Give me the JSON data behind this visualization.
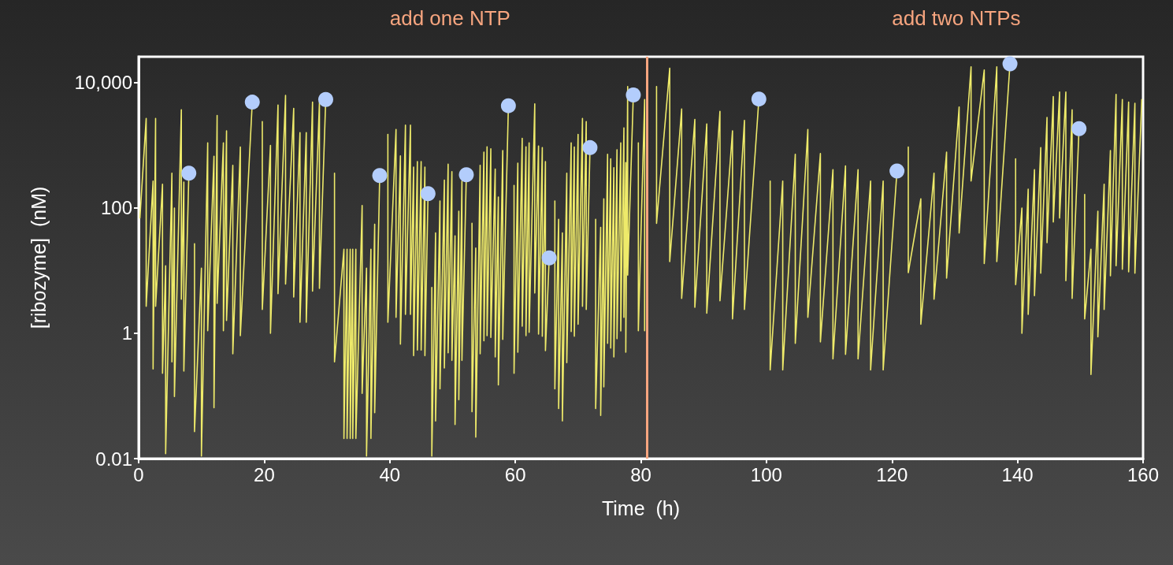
{
  "chart_data": {
    "type": "line",
    "xlabel": "Time  (h)",
    "ylabel": "[ribozyme]  (nM)",
    "annotations": [
      "add one NTP",
      "add two NTPs"
    ],
    "xlim": [
      0,
      160
    ],
    "xticks": [
      0,
      20,
      40,
      60,
      80,
      100,
      120,
      140,
      160
    ],
    "ylim": [
      0.01,
      26000
    ],
    "yticks": [
      0.01,
      1,
      100,
      {
        "value": 10000,
        "label": "10,000"
      }
    ],
    "log": "y",
    "grid": false,
    "ref_lines": [
      {
        "axis": "x",
        "value": 81,
        "color": "#f7a57f"
      }
    ],
    "series": [
      {
        "color": "#eeea6a",
        "marker": "none",
        "line_style": "solid",
        "x": [
          0.2,
          1.2,
          1.2,
          2.3,
          2.3,
          2.7,
          2.7,
          3.8,
          3.8,
          4.3,
          4.3,
          5.3,
          5.3,
          5.7,
          5.7,
          6.8,
          6.8,
          7.2,
          7.2,
          8.0,
          null,
          8.9,
          8.9,
          10.0,
          10.0,
          11.0,
          11.0,
          12.0,
          12.0,
          12.5,
          12.5,
          13.5,
          13.5,
          14.0,
          14.0,
          15.0,
          15.0,
          16.2,
          16.2,
          18.1,
          null,
          19.7,
          19.7,
          21.0,
          21.0,
          22.2,
          22.2,
          23.4,
          23.4,
          24.7,
          24.7,
          25.7,
          25.7,
          26.7,
          26.7,
          27.7,
          27.7,
          28.8,
          28.8,
          29.8,
          null,
          31.2,
          31.2,
          32.7,
          32.7,
          33.2,
          33.2,
          33.7,
          33.7,
          34.1,
          34.1,
          34.6,
          34.6,
          35.6,
          35.6,
          36.3,
          36.3,
          37.0,
          37.0,
          37.6,
          37.6,
          38.4,
          null,
          39.7,
          39.7,
          41.0,
          41.0,
          41.7,
          41.7,
          42.5,
          42.5,
          43.3,
          43.3,
          43.8,
          43.8,
          44.4,
          44.4,
          45.0,
          45.0,
          45.6,
          45.6,
          46.1,
          null,
          46.7,
          46.7,
          47.3,
          47.3,
          48.0,
          48.0,
          48.7,
          48.7,
          49.3,
          49.3,
          49.9,
          49.9,
          50.4,
          50.4,
          51.0,
          51.0,
          51.5,
          51.5,
          52.2,
          null,
          53.1,
          53.1,
          53.7,
          53.7,
          54.4,
          54.4,
          55.0,
          55.0,
          55.5,
          55.5,
          56.1,
          56.1,
          56.8,
          56.8,
          57.3,
          57.3,
          58.0,
          58.0,
          58.9,
          null,
          59.8,
          59.8,
          60.4,
          60.4,
          61.1,
          61.1,
          61.7,
          61.7,
          62.2,
          62.2,
          63.1,
          63.1,
          63.7,
          63.7,
          64.3,
          64.3,
          64.8,
          64.8,
          65.4,
          null,
          66.3,
          66.3,
          66.9,
          66.9,
          67.5,
          67.5,
          68.2,
          68.2,
          68.9,
          68.9,
          69.4,
          69.4,
          70.0,
          70.0,
          70.7,
          70.7,
          71.3,
          71.3,
          71.9,
          null,
          72.8,
          72.8,
          73.6,
          73.6,
          74.1,
          74.1,
          74.7,
          74.7,
          75.2,
          75.2,
          75.7,
          75.7,
          76.2,
          76.2,
          76.8,
          76.8,
          77.3,
          77.3,
          77.6,
          77.6,
          77.9,
          77.9,
          78.8,
          null,
          79.6,
          79.6,
          80.6,
          80.6,
          null,
          82.5,
          82.5,
          84.6,
          84.6,
          86.5,
          86.5,
          88.6,
          88.6,
          90.5,
          90.5,
          92.6,
          92.6,
          94.6,
          94.6,
          96.5,
          96.5,
          98.8,
          null,
          100.6,
          100.6,
          102.6,
          102.6,
          104.6,
          104.6,
          106.6,
          106.6,
          108.6,
          108.6,
          110.6,
          110.6,
          112.6,
          112.6,
          114.6,
          114.6,
          116.6,
          116.6,
          118.6,
          118.6,
          120.8,
          null,
          122.6,
          122.6,
          124.6,
          124.6,
          126.7,
          126.7,
          128.7,
          128.7,
          130.7,
          130.7,
          132.6,
          132.6,
          134.7,
          134.7,
          136.7,
          136.7,
          138.8,
          null,
          139.7,
          139.7,
          140.7,
          140.7,
          141.7,
          141.7,
          142.7,
          142.7,
          143.7,
          143.7,
          144.7,
          144.7,
          145.7,
          145.7,
          146.7,
          146.7,
          147.7,
          147.7,
          148.7,
          148.7,
          149.8,
          null,
          150.7,
          150.7,
          151.7,
          151.7,
          152.8,
          152.8,
          153.8,
          153.8,
          154.8,
          154.8,
          155.7,
          155.7,
          156.7,
          156.7,
          157.7,
          157.7,
          158.7,
          158.7,
          159.8
        ],
        "values": [
          69,
          2700,
          2.7,
          270,
          0.27,
          2700,
          2.7,
          240,
          0.23,
          12,
          0.012,
          360,
          0.35,
          100,
          0.098,
          3700,
          3.5,
          260,
          0.25,
          360,
          null,
          27,
          0.027,
          11,
          0.011,
          1100,
          1.1,
          670,
          0.065,
          3000,
          3.0,
          1100,
          1.1,
          1700,
          1.6,
          480,
          0.47,
          940,
          0.92,
          4900,
          null,
          2400,
          2.4,
          1000,
          1.0,
          4400,
          4.3,
          6300,
          6.1,
          3900,
          3.8,
          1600,
          1.5,
          1600,
          1.5,
          4900,
          4.7,
          4900,
          5.2,
          5400,
          null,
          360,
          0.35,
          22,
          0.021,
          22,
          0.021,
          22,
          0.021,
          22,
          0.021,
          22,
          0.021,
          110,
          0.11,
          11,
          0.011,
          22,
          0.021,
          55,
          0.054,
          330,
          null,
          1500,
          1.5,
          1800,
          1.8,
          680,
          0.67,
          2100,
          2.0,
          2100,
          2.0,
          450,
          0.44,
          550,
          0.54,
          550,
          0.54,
          450,
          0.44,
          170,
          null,
          5.4,
          0.011,
          40,
          0.04,
          130,
          0.13,
          280,
          0.28,
          500,
          0.49,
          380,
          0.37,
          36,
          0.035,
          89,
          0.087,
          270,
          0.37,
          340,
          null,
          57,
          0.056,
          23,
          0.022,
          480,
          0.47,
          780,
          0.76,
          950,
          0.92,
          880,
          0.86,
          420,
          0.42,
          150,
          0.15,
          830,
          0.8,
          4300,
          null,
          230,
          0.23,
          520,
          0.5,
          1300,
          1.3,
          950,
          0.92,
          1100,
          1.04,
          4600,
          4.4,
          980,
          0.97,
          920,
          0.9,
          550,
          0.53,
          16,
          null,
          130,
          0.13,
          66,
          0.063,
          40,
          0.04,
          360,
          0.34,
          1100,
          1.07,
          940,
          0.9,
          1500,
          1.4,
          2700,
          2.7,
          2400,
          2.4,
          920,
          null,
          66,
          0.063,
          49,
          0.049,
          140,
          0.14,
          720,
          0.69,
          610,
          0.58,
          440,
          0.42,
          850,
          0.82,
          1100,
          1.09,
          1900,
          1.8,
          530,
          0.5,
          8700,
          8.5,
          6400,
          null,
          1100,
          1.1,
          5400,
          1.1,
          null,
          8700,
          57,
          17000,
          14,
          3800,
          3.6,
          2600,
          2.6,
          2200,
          2.1,
          3500,
          3.3,
          1700,
          1.7,
          2500,
          2.4,
          5500,
          null,
          270,
          0.26,
          270,
          0.26,
          720,
          0.69,
          1800,
          1.8,
          740,
          0.73,
          410,
          0.39,
          470,
          0.46,
          410,
          0.39,
          270,
          0.26,
          270,
          0.26,
          390,
          null,
          940,
          9.3,
          140,
          1.4,
          360,
          3.5,
          780,
          7.6,
          4100,
          40,
          18000,
          270,
          16000,
          13,
          18000,
          14,
          20000,
          null,
          610,
          6.0,
          100,
          1.0,
          200,
          2.0,
          410,
          4.0,
          920,
          9.1,
          2800,
          28,
          6000,
          60,
          7100,
          69,
          7100,
          6.9,
          3700,
          3.6,
          1850,
          null,
          165,
          1.7,
          22,
          0.22,
          89,
          0.88,
          240,
          2.4,
          830,
          8.3,
          6500,
          12,
          5400,
          10.5,
          4900,
          9.6,
          4700,
          9.1,
          5400
        ]
      },
      {
        "type": "scatter",
        "color": "#b3cdfc",
        "marker": "circle",
        "x": [
          8.0,
          18.1,
          29.8,
          38.4,
          46.1,
          52.2,
          58.9,
          65.4,
          71.9,
          78.8,
          98.8,
          120.8,
          138.8,
          149.8
        ],
        "values": [
          360,
          4900,
          5400,
          330,
          170,
          340,
          4300,
          16,
          920,
          6400,
          5500,
          390,
          20000,
          1850
        ]
      }
    ]
  }
}
